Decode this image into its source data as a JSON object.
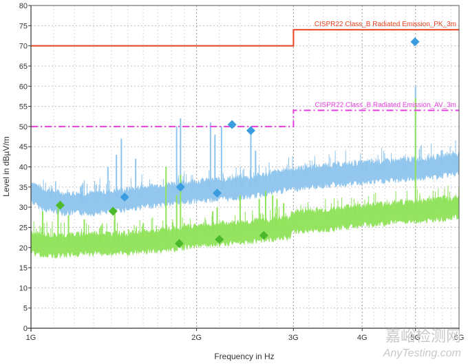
{
  "chart_data": {
    "type": "line",
    "xlabel": "Frequency in Hz",
    "ylabel": "Level in dBµV/m",
    "x_scale": "log",
    "xlim": [
      1000000000,
      6000000000
    ],
    "ylim": [
      0,
      80
    ],
    "x_ticks": [
      {
        "value": 1000000000,
        "label": "1G"
      },
      {
        "value": 2000000000,
        "label": "2G"
      },
      {
        "value": 3000000000,
        "label": "3G"
      },
      {
        "value": 4000000000,
        "label": "4G"
      },
      {
        "value": 5000000000,
        "label": "5G"
      },
      {
        "value": 6000000000,
        "label": "6G"
      }
    ],
    "y_ticks": [
      0,
      5,
      10,
      15,
      20,
      25,
      30,
      35,
      40,
      45,
      50,
      55,
      60,
      65,
      70,
      75,
      80
    ],
    "grid": true,
    "limits": [
      {
        "label": "CISPR22 Class_B Radiated Emission_PK_3m",
        "color": "#e8421e",
        "style": "solid",
        "points": [
          [
            1000000000,
            70
          ],
          [
            3000000000,
            70
          ],
          [
            3000000000,
            74
          ],
          [
            6000000000,
            74
          ]
        ]
      },
      {
        "label": "CISPR22 Class_B Radiated Emission_AV_3m",
        "color": "#e83ee0",
        "style": "dashdot",
        "points": [
          [
            1000000000,
            50
          ],
          [
            3000000000,
            50
          ],
          [
            3000000000,
            54
          ],
          [
            6000000000,
            54
          ]
        ]
      }
    ],
    "series": [
      {
        "color": "#8ec5ee",
        "baseline": [
          [
            1000000000,
            34
          ],
          [
            1050000000,
            32
          ],
          [
            1150000000,
            31
          ],
          [
            1300000000,
            31
          ],
          [
            1500000000,
            32
          ],
          [
            1700000000,
            33
          ],
          [
            2000000000,
            34
          ],
          [
            2500000000,
            35
          ],
          [
            3000000000,
            37
          ],
          [
            3500000000,
            38
          ],
          [
            4000000000,
            38.5
          ],
          [
            4500000000,
            39
          ],
          [
            5000000000,
            39.5
          ],
          [
            5500000000,
            40
          ],
          [
            6000000000,
            41
          ]
        ],
        "spikes": [
          [
            1380000000,
            40
          ],
          [
            1430000000,
            43
          ],
          [
            1460000000,
            47
          ],
          [
            1550000000,
            42
          ],
          [
            1840000000,
            50
          ],
          [
            1870000000,
            52
          ],
          [
            2120000000,
            51
          ],
          [
            2160000000,
            48
          ],
          [
            2220000000,
            50
          ],
          [
            2510000000,
            50
          ],
          [
            2560000000,
            44
          ],
          [
            5000000000,
            60
          ]
        ]
      },
      {
        "color": "#8fe35a",
        "baseline": [
          [
            1000000000,
            21
          ],
          [
            1100000000,
            20.5
          ],
          [
            1300000000,
            21
          ],
          [
            1500000000,
            21
          ],
          [
            1800000000,
            22
          ],
          [
            2000000000,
            23
          ],
          [
            2500000000,
            24
          ],
          [
            2950000000,
            25
          ],
          [
            3000000000,
            26.5
          ],
          [
            3500000000,
            27
          ],
          [
            4000000000,
            28
          ],
          [
            5000000000,
            29
          ],
          [
            5500000000,
            29.5
          ],
          [
            6000000000,
            30
          ]
        ],
        "spikes": [
          [
            1050000000,
            29
          ],
          [
            1120000000,
            30
          ],
          [
            1170000000,
            28
          ],
          [
            1250000000,
            27
          ],
          [
            1420000000,
            29
          ],
          [
            1600000000,
            26
          ],
          [
            1760000000,
            40
          ],
          [
            1840000000,
            33
          ],
          [
            1870000000,
            38
          ],
          [
            1900000000,
            26
          ],
          [
            2140000000,
            29
          ],
          [
            2180000000,
            30
          ],
          [
            2400000000,
            33
          ],
          [
            2600000000,
            32
          ],
          [
            2670000000,
            34
          ],
          [
            2750000000,
            33
          ],
          [
            2800000000,
            32
          ],
          [
            2880000000,
            31
          ],
          [
            5000000000,
            57
          ]
        ]
      }
    ],
    "markers": [
      {
        "x": 1480000000,
        "y": 32.5,
        "color": "#3b9de0"
      },
      {
        "x": 1870000000,
        "y": 35,
        "color": "#3b9de0"
      },
      {
        "x": 2180000000,
        "y": 33.5,
        "color": "#3b9de0"
      },
      {
        "x": 2320000000,
        "y": 50.5,
        "color": "#3b9de0"
      },
      {
        "x": 2510000000,
        "y": 49,
        "color": "#3b9de0"
      },
      {
        "x": 4990000000,
        "y": 71,
        "color": "#3b9de0"
      },
      {
        "x": 1130000000,
        "y": 30.5,
        "color": "#4cb82c"
      },
      {
        "x": 1410000000,
        "y": 29,
        "color": "#4cb82c"
      },
      {
        "x": 1860000000,
        "y": 21,
        "color": "#4cb82c"
      },
      {
        "x": 2200000000,
        "y": 22,
        "color": "#4cb82c"
      },
      {
        "x": 2650000000,
        "y": 23,
        "color": "#4cb82c"
      }
    ]
  },
  "watermark": {
    "cn": "嘉峪检测网",
    "en": "AnyTesting.com"
  }
}
